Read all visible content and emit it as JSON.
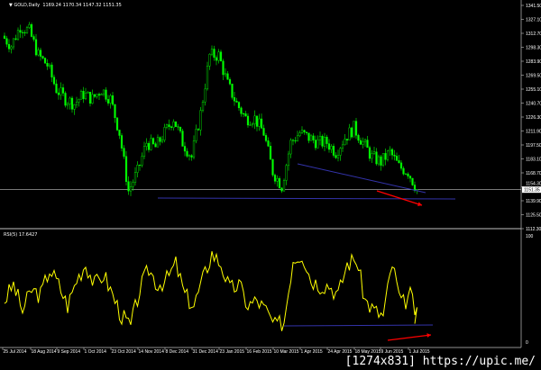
{
  "header": {
    "symbol": "GOLD,Daily",
    "ohlc": "1169.24 1170.34 1147.32 1151.35"
  },
  "rsi_header": {
    "label": "RSI(5)",
    "value": "17.6427"
  },
  "watermark": "[1274x831] https://upic.me/",
  "colors": {
    "candle": "#00ff00",
    "rsi": "#ffff00",
    "trendline": "#3333aa",
    "arrow": "#ff0000",
    "axis": "#c0c0c0",
    "current_price_line": "#c0c0c0"
  },
  "chart_data": [
    {
      "type": "candlestick",
      "title": "GOLD,Daily",
      "current_price": "1151.35",
      "y_ticks": [
        "1341.50",
        "1327.10",
        "1312.70",
        "1298.30",
        "1283.90",
        "1269.50",
        "1255.10",
        "1240.70",
        "1226.30",
        "1211.90",
        "1197.50",
        "1183.10",
        "1168.70",
        "1154.30",
        "1139.90",
        "1125.50",
        "1112.30"
      ],
      "x_ticks": [
        "25 Jul 2014",
        "18 Aug 2014",
        "9 Sep 2014",
        "1 Oct 2014",
        "23 Oct 2014",
        "14 Nov 2014",
        "8 Dec 2014",
        "31 Dec 2014",
        "23 Jan 2015",
        "16 Feb 2015",
        "10 Mar 2015",
        "1 Apr 2015",
        "24 Apr 2015",
        "18 May 2015",
        "9 Jun 2015",
        "1 Jul 2015"
      ],
      "closes_approx": [
        1310,
        1300,
        1320,
        1315,
        1290,
        1280,
        1255,
        1245,
        1240,
        1250,
        1245,
        1255,
        1245,
        1210,
        1150,
        1170,
        1200,
        1195,
        1210,
        1225,
        1200,
        1185,
        1230,
        1290,
        1290,
        1260,
        1240,
        1225,
        1225,
        1210,
        1170,
        1155,
        1200,
        1210,
        1205,
        1200,
        1200,
        1190,
        1205,
        1215,
        1200,
        1185,
        1180,
        1190,
        1175,
        1170,
        1151.35
      ],
      "trendlines": [
        {
          "from": [
            "14 Nov 2014",
            1146
          ],
          "to": [
            "after 1 Jul 2015",
            1146
          ]
        },
        {
          "from": [
            "1 Apr 2015",
            1190
          ],
          "to": [
            "1 Jul 2015",
            1156
          ]
        }
      ]
    },
    {
      "type": "line",
      "title": "RSI(5) 17.6427",
      "y_ticks": [
        "100",
        "0"
      ],
      "ylim": [
        0,
        100
      ],
      "values_approx": [
        40,
        55,
        30,
        50,
        45,
        70,
        55,
        35,
        60,
        75,
        55,
        65,
        45,
        25,
        15,
        50,
        70,
        55,
        60,
        75,
        45,
        35,
        60,
        85,
        75,
        50,
        55,
        35,
        40,
        30,
        15,
        20,
        80,
        85,
        60,
        55,
        55,
        45,
        75,
        80,
        40,
        30,
        25,
        75,
        35,
        45,
        17.6
      ]
    }
  ]
}
